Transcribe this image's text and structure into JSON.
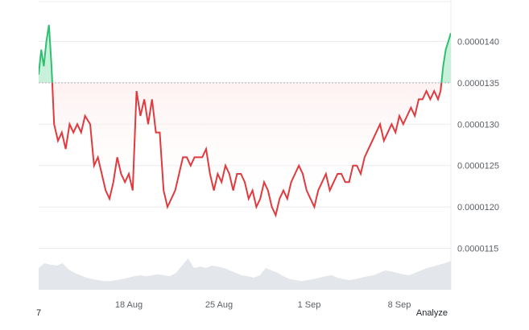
{
  "chart_data": {
    "type": "area",
    "title": "",
    "xlabel": "",
    "ylabel": "",
    "ylim": [
      1.1e-05,
      1.45e-05
    ],
    "baseline": 1.35e-05,
    "y_ticks": [
      "0.0000140",
      "0.0000135",
      "0.0000130",
      "0.0000125",
      "0.0000120",
      "0.0000115"
    ],
    "y_tick_values": [
      1.4e-05,
      1.35e-05,
      1.3e-05,
      1.25e-05,
      1.2e-05,
      1.15e-05
    ],
    "x_ticks": [
      {
        "label": "18 Aug",
        "day": 18
      },
      {
        "label": "25 Aug",
        "day": 25
      },
      {
        "label": "1 Sep",
        "day": 32
      },
      {
        "label": "8 Sep",
        "day": 39
      }
    ],
    "x_start_label": "7",
    "x_domain_days": [
      11,
      43
    ],
    "series": [
      {
        "x": [
          11.0,
          11.2,
          11.4,
          11.6,
          11.8,
          12.0,
          12.2,
          12.5,
          12.8,
          13.1,
          13.4,
          13.7,
          14.0,
          14.3,
          14.6,
          15.0,
          15.3,
          15.6,
          15.9,
          16.2,
          16.5,
          16.8,
          17.1,
          17.4,
          17.7,
          18.0,
          18.3,
          18.6,
          18.9,
          19.2,
          19.5,
          19.8,
          20.1,
          20.4,
          20.7,
          21.0,
          21.3,
          21.6,
          21.9,
          22.2,
          22.5,
          22.8,
          23.1,
          23.4,
          23.7,
          24.0,
          24.3,
          24.6,
          24.9,
          25.2,
          25.5,
          25.8,
          26.1,
          26.4,
          26.7,
          27.0,
          27.3,
          27.6,
          27.9,
          28.2,
          28.5,
          28.8,
          29.1,
          29.4,
          29.7,
          30.0,
          30.3,
          30.6,
          30.9,
          31.2,
          31.5,
          31.8,
          32.1,
          32.4,
          32.7,
          33.0,
          33.3,
          33.6,
          33.9,
          34.2,
          34.5,
          34.8,
          35.1,
          35.4,
          35.7,
          36.0,
          36.3,
          36.6,
          36.9,
          37.2,
          37.5,
          37.8,
          38.1,
          38.4,
          38.7,
          39.0,
          39.3,
          39.6,
          39.9,
          40.2,
          40.5,
          40.8,
          41.1,
          41.4,
          41.7,
          42.0,
          42.2,
          42.4,
          42.6,
          42.8,
          43.0
        ],
        "y": [
          1.36e-05,
          1.39e-05,
          1.37e-05,
          1.4e-05,
          1.42e-05,
          1.37e-05,
          1.3e-05,
          1.28e-05,
          1.29e-05,
          1.27e-05,
          1.3e-05,
          1.29e-05,
          1.3e-05,
          1.29e-05,
          1.31e-05,
          1.3e-05,
          1.25e-05,
          1.26e-05,
          1.24e-05,
          1.22e-05,
          1.21e-05,
          1.23e-05,
          1.26e-05,
          1.24e-05,
          1.23e-05,
          1.24e-05,
          1.22e-05,
          1.34e-05,
          1.31e-05,
          1.33e-05,
          1.3e-05,
          1.33e-05,
          1.29e-05,
          1.29e-05,
          1.22e-05,
          1.2e-05,
          1.21e-05,
          1.22e-05,
          1.24e-05,
          1.26e-05,
          1.26e-05,
          1.25e-05,
          1.26e-05,
          1.26e-05,
          1.26e-05,
          1.27e-05,
          1.24e-05,
          1.22e-05,
          1.24e-05,
          1.23e-05,
          1.25e-05,
          1.24e-05,
          1.22e-05,
          1.24e-05,
          1.24e-05,
          1.23e-05,
          1.21e-05,
          1.22e-05,
          1.2e-05,
          1.21e-05,
          1.23e-05,
          1.22e-05,
          1.2e-05,
          1.19e-05,
          1.21e-05,
          1.22e-05,
          1.21e-05,
          1.23e-05,
          1.24e-05,
          1.25e-05,
          1.24e-05,
          1.22e-05,
          1.21e-05,
          1.2e-05,
          1.22e-05,
          1.23e-05,
          1.24e-05,
          1.22e-05,
          1.23e-05,
          1.24e-05,
          1.24e-05,
          1.23e-05,
          1.23e-05,
          1.25e-05,
          1.25e-05,
          1.24e-05,
          1.26e-05,
          1.27e-05,
          1.28e-05,
          1.29e-05,
          1.3e-05,
          1.28e-05,
          1.29e-05,
          1.3e-05,
          1.29e-05,
          1.31e-05,
          1.3e-05,
          1.31e-05,
          1.32e-05,
          1.31e-05,
          1.33e-05,
          1.33e-05,
          1.34e-05,
          1.33e-05,
          1.34e-05,
          1.33e-05,
          1.34e-05,
          1.37e-05,
          1.39e-05,
          1.4e-05,
          1.41e-05
        ]
      }
    ],
    "volume": [
      0.45,
      0.55,
      0.52,
      0.5,
      0.55,
      0.42,
      0.35,
      0.3,
      0.25,
      0.22,
      0.2,
      0.18,
      0.18,
      0.2,
      0.22,
      0.25,
      0.28,
      0.3,
      0.28,
      0.3,
      0.32,
      0.3,
      0.28,
      0.35,
      0.5,
      0.65,
      0.45,
      0.48,
      0.45,
      0.5,
      0.48,
      0.45,
      0.4,
      0.35,
      0.3,
      0.28,
      0.25,
      0.3,
      0.45,
      0.4,
      0.35,
      0.28,
      0.22,
      0.2,
      0.18,
      0.2,
      0.22,
      0.25,
      0.28,
      0.3,
      0.25,
      0.22,
      0.2,
      0.22,
      0.25,
      0.28,
      0.3,
      0.35,
      0.4,
      0.38,
      0.35,
      0.32,
      0.3,
      0.35,
      0.4,
      0.45,
      0.48,
      0.52,
      0.55,
      0.6
    ],
    "grid": true,
    "legend": "none",
    "colors": {
      "up_line": "#2fbf71",
      "up_fill": "#c8f0da",
      "down_line": "#e03a3e",
      "down_fill": "#fde3e4",
      "baseline": "#b0b4ba",
      "grid": "#ececec",
      "volume": "#e3e6ea",
      "axis_text": "#5a5f66"
    }
  },
  "footer": {
    "analyze_label": "Analyze"
  }
}
